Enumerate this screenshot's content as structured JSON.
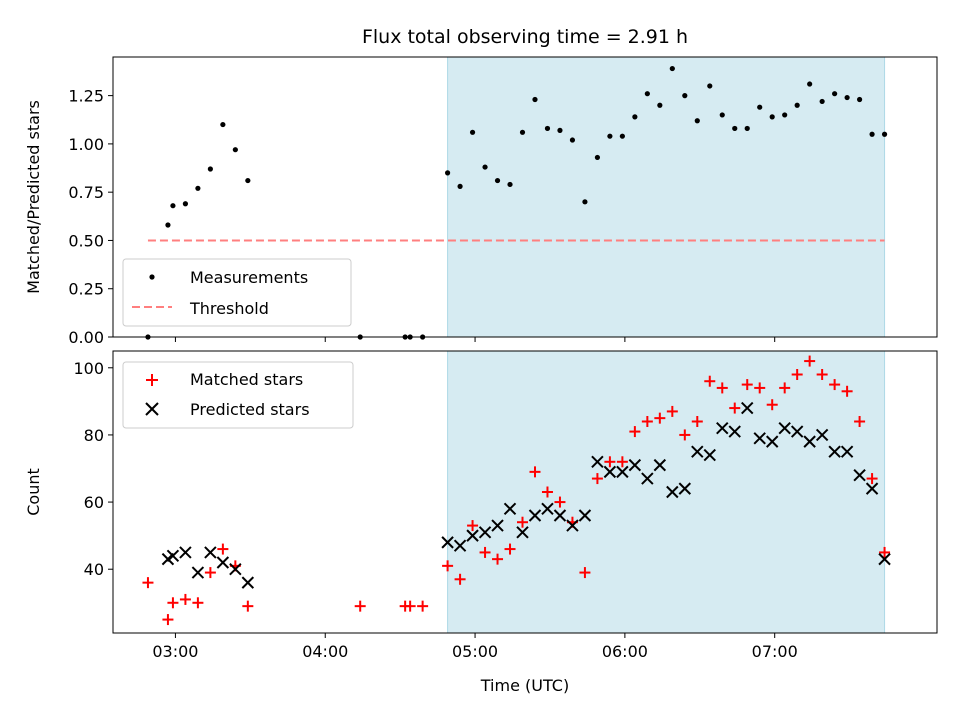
{
  "figure": {
    "title": "Flux total observing time = 2.91 h"
  },
  "colors": {
    "shade": "#add8e6",
    "measurement": "#000000",
    "threshold": "#ff7f7f",
    "matched": "#ff0000",
    "predicted": "#000000"
  },
  "chart_data": [
    {
      "type": "scatter",
      "panel": "top",
      "title": "Flux total observing time = 2.91 h",
      "xlabel": "",
      "ylabel": "Matched/Predicted stars",
      "x_unit": "time (UTC)",
      "xlim": [
        "02:35",
        "08:05"
      ],
      "ylim": [
        0,
        1.45
      ],
      "x_ticks": [
        "03:00",
        "04:00",
        "05:00",
        "06:00",
        "07:00"
      ],
      "y_ticks": [
        "0.00",
        "0.25",
        "0.50",
        "0.75",
        "1.00",
        "1.25"
      ],
      "grid": false,
      "legend_position": "lower left",
      "shaded_span": {
        "x_start": "04:49",
        "x_end": "07:44"
      },
      "threshold": {
        "name": "Threshold",
        "y": 0.5,
        "x_start": "02:49",
        "x_end": "07:44"
      },
      "series": [
        {
          "name": "Measurements",
          "x": [
            "02:49",
            "02:57",
            "02:59",
            "03:04",
            "03:09",
            "03:14",
            "03:19",
            "03:24",
            "03:29",
            "04:14",
            "04:32",
            "04:34",
            "04:39",
            "04:49",
            "04:54",
            "04:59",
            "05:04",
            "05:09",
            "05:14",
            "05:19",
            "05:24",
            "05:29",
            "05:34",
            "05:39",
            "05:44",
            "05:49",
            "05:54",
            "05:59",
            "06:04",
            "06:09",
            "06:14",
            "06:19",
            "06:24",
            "06:29",
            "06:34",
            "06:39",
            "06:44",
            "06:49",
            "06:54",
            "06:59",
            "07:04",
            "07:09",
            "07:14",
            "07:19",
            "07:24",
            "07:29",
            "07:34",
            "07:39",
            "07:44"
          ],
          "y": [
            0.0,
            0.58,
            0.68,
            0.69,
            0.77,
            0.87,
            1.1,
            0.97,
            0.81,
            0.0,
            0.0,
            0.0,
            0.0,
            0.85,
            0.78,
            1.06,
            0.88,
            0.81,
            0.79,
            1.06,
            1.23,
            1.08,
            1.07,
            1.02,
            0.7,
            0.93,
            1.04,
            1.04,
            1.14,
            1.26,
            1.2,
            1.39,
            1.25,
            1.12,
            1.3,
            1.15,
            1.08,
            1.08,
            1.19,
            1.14,
            1.15,
            1.2,
            1.31,
            1.22,
            1.26,
            1.24,
            1.23,
            1.05,
            1.05
          ]
        }
      ]
    },
    {
      "type": "scatter",
      "panel": "bottom",
      "title": "",
      "xlabel": "Time (UTC)",
      "ylabel": "Count",
      "x_unit": "time (UTC)",
      "xlim": [
        "02:35",
        "08:05"
      ],
      "ylim": [
        21,
        105
      ],
      "x_ticks": [
        "03:00",
        "04:00",
        "05:00",
        "06:00",
        "07:00"
      ],
      "y_ticks": [
        "40",
        "60",
        "80",
        "100"
      ],
      "grid": false,
      "legend_position": "upper left",
      "shaded_span": {
        "x_start": "04:49",
        "x_end": "07:44"
      },
      "series": [
        {
          "name": "Matched stars",
          "marker": "plus",
          "x": [
            "02:49",
            "02:57",
            "02:59",
            "03:04",
            "03:09",
            "03:14",
            "03:19",
            "03:24",
            "03:29",
            "04:14",
            "04:32",
            "04:34",
            "04:39",
            "04:49",
            "04:54",
            "04:59",
            "05:04",
            "05:09",
            "05:14",
            "05:19",
            "05:24",
            "05:29",
            "05:34",
            "05:39",
            "05:44",
            "05:49",
            "05:54",
            "05:59",
            "06:04",
            "06:09",
            "06:14",
            "06:19",
            "06:24",
            "06:29",
            "06:34",
            "06:39",
            "06:44",
            "06:49",
            "06:54",
            "06:59",
            "07:04",
            "07:09",
            "07:14",
            "07:19",
            "07:24",
            "07:29",
            "07:34",
            "07:39",
            "07:44"
          ],
          "y": [
            36,
            25,
            30,
            31,
            30,
            39,
            46,
            41,
            29,
            29,
            29,
            29,
            29,
            41,
            37,
            53,
            45,
            43,
            46,
            54,
            69,
            63,
            60,
            54,
            39,
            67,
            72,
            72,
            81,
            84,
            85,
            87,
            80,
            84,
            96,
            94,
            88,
            95,
            94,
            89,
            94,
            98,
            102,
            98,
            95,
            93,
            84,
            67,
            45
          ]
        },
        {
          "name": "Predicted stars",
          "marker": "x",
          "x": [
            "02:57",
            "02:59",
            "03:04",
            "03:09",
            "03:14",
            "03:19",
            "03:24",
            "03:29",
            "04:49",
            "04:54",
            "04:59",
            "05:04",
            "05:09",
            "05:14",
            "05:19",
            "05:24",
            "05:29",
            "05:34",
            "05:39",
            "05:44",
            "05:49",
            "05:54",
            "05:59",
            "06:04",
            "06:09",
            "06:14",
            "06:19",
            "06:24",
            "06:29",
            "06:34",
            "06:39",
            "06:44",
            "06:49",
            "06:54",
            "06:59",
            "07:04",
            "07:09",
            "07:14",
            "07:19",
            "07:24",
            "07:29",
            "07:34",
            "07:39",
            "07:44"
          ],
          "y": [
            43,
            44,
            45,
            39,
            45,
            42,
            40,
            36,
            48,
            47,
            50,
            51,
            53,
            58,
            51,
            56,
            58,
            56,
            53,
            56,
            72,
            69,
            69,
            71,
            67,
            71,
            63,
            64,
            75,
            74,
            82,
            81,
            88,
            79,
            78,
            82,
            81,
            78,
            80,
            75,
            75,
            68,
            64,
            43
          ]
        }
      ]
    }
  ]
}
